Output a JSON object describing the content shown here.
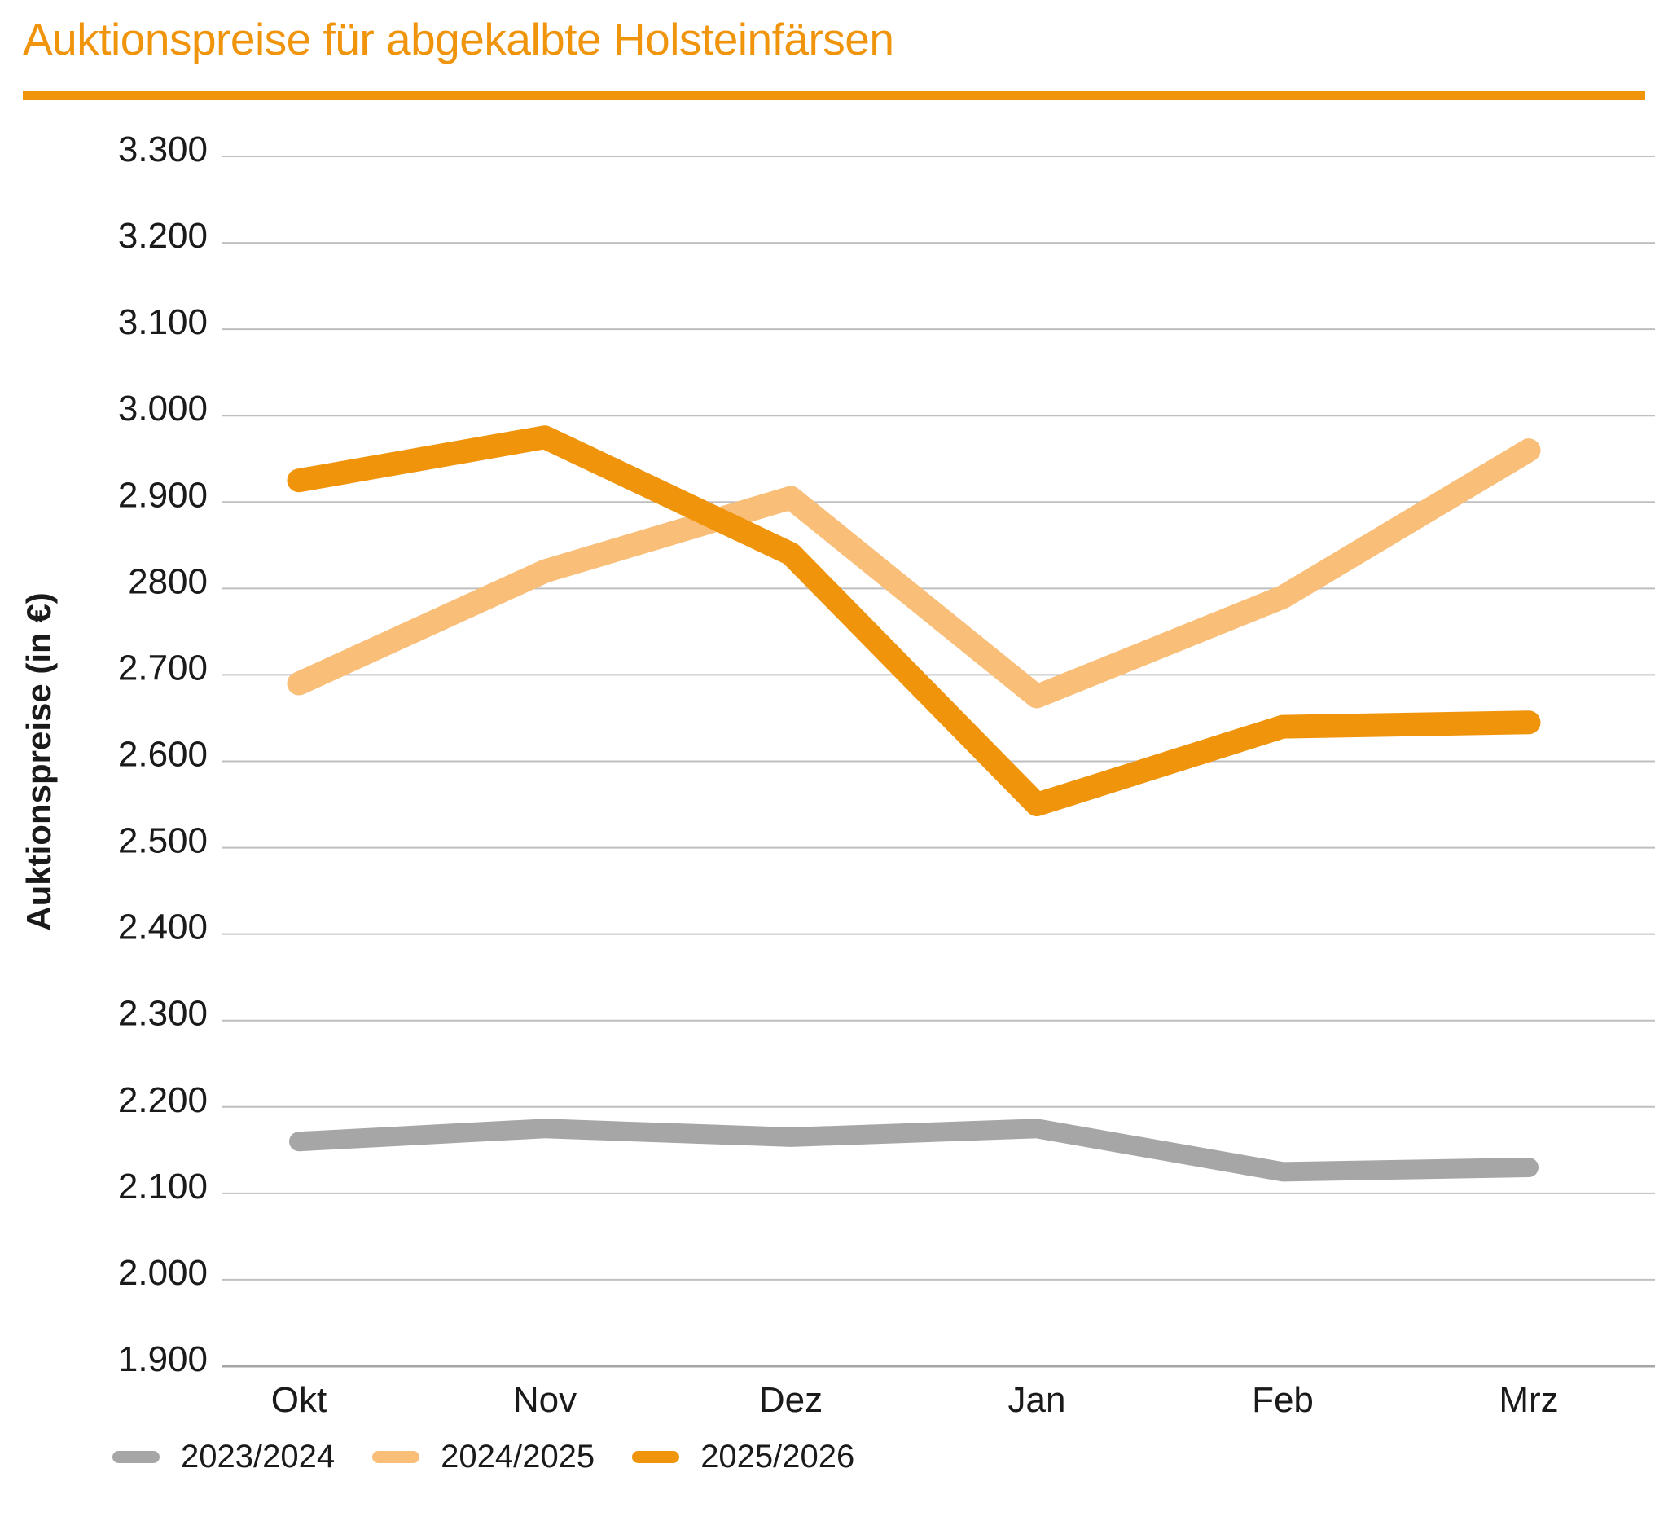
{
  "title": "Auktionspreise für abgekalbte Holsteinfärsen",
  "accent_color": "#F0940B",
  "chart_data": {
    "type": "line",
    "title": "Auktionspreise für abgekalbte Holsteinfärsen",
    "xlabel": "",
    "ylabel": "Auktionspreise (in €)",
    "categories": [
      "Okt",
      "Nov",
      "Dez",
      "Jan",
      "Feb",
      "Mrz"
    ],
    "series": [
      {
        "name": "2023/2024",
        "color": "#A6A6A6",
        "values": [
          2160,
          2175,
          2165,
          2175,
          2125,
          2130
        ]
      },
      {
        "name": "2024/2025",
        "color": "#F9BE77",
        "values": [
          2690,
          2820,
          2905,
          2675,
          2790,
          2960
        ]
      },
      {
        "name": "2025/2026",
        "color": "#F0940B",
        "values": [
          2925,
          2975,
          2840,
          2550,
          2640,
          2645
        ]
      }
    ],
    "ylim": [
      1900,
      3300
    ],
    "ytick_step": 100,
    "ytick_labels_top_to_bottom": [
      "3.300",
      "3.200",
      "3.100",
      "3.000",
      "2.900",
      "2800",
      "2.700",
      "2.600",
      "2.500",
      "2.400",
      "2.300",
      "2.200",
      "2.100",
      "2.000",
      "1.900"
    ],
    "grid": true,
    "gridline_color": "#BFBFBF",
    "axisline_color": "#A6A6A6",
    "tick_label_color": "#1a1a1a",
    "legend_position": "bottom"
  }
}
